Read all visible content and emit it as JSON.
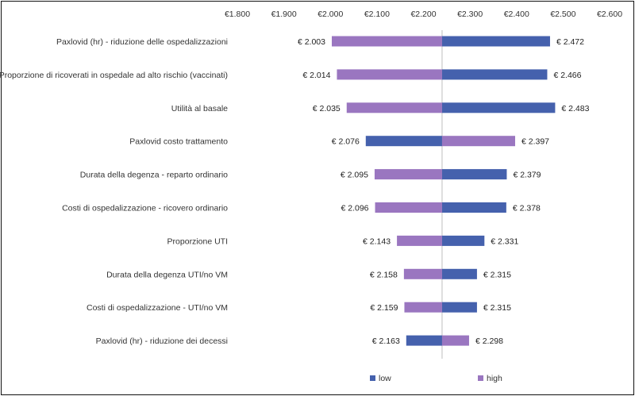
{
  "chart_data": {
    "type": "tornado",
    "baseline": 2240,
    "xlim": [
      1800,
      2600
    ],
    "x_ticks": [
      1800,
      1900,
      2000,
      2100,
      2200,
      2300,
      2400,
      2500,
      2600
    ],
    "x_tick_labels": [
      "€1.800",
      "€1.900",
      "€2.000",
      "€2.100",
      "€2.200",
      "€2.300",
      "€2.400",
      "€2.500",
      "€2.600"
    ],
    "categories": [
      "Paxlovid (hr) - riduzione delle ospedalizzazioni",
      "Proporzione di ricoverati in ospedale ad alto rischio (vaccinati)",
      "Utilità al basale",
      "Paxlovid costo trattamento",
      "Durata della degenza - reparto ordinario",
      "Costi di ospedalizzazione - ricovero ordinario",
      "Proporzione UTI",
      "Durata della degenza UTI/no VM",
      "Costi di ospedalizzazione - UTI/no VM",
      "Paxlovid (hr) - riduzione dei decessi"
    ],
    "series": [
      {
        "name": "low",
        "color": "#4561ad",
        "values": [
          2472,
          2466,
          2483,
          2076,
          2379,
          2378,
          2331,
          2315,
          2315,
          2163
        ]
      },
      {
        "name": "high",
        "color": "#9a76c0",
        "values": [
          2003,
          2014,
          2035,
          2397,
          2095,
          2096,
          2143,
          2158,
          2159,
          2298
        ]
      }
    ],
    "data_labels": [
      {
        "left": "€ 2.003",
        "right": "€ 2.472"
      },
      {
        "left": "€ 2.014",
        "right": "€ 2.466"
      },
      {
        "left": "€ 2.035",
        "right": "€ 2.483"
      },
      {
        "left": "€ 2.076",
        "right": "€ 2.397"
      },
      {
        "left": "€ 2.095",
        "right": "€ 2.379"
      },
      {
        "left": "€ 2.096",
        "right": "€ 2.378"
      },
      {
        "left": "€ 2.143",
        "right": "€ 2.331"
      },
      {
        "left": "€ 2.158",
        "right": "€ 2.315"
      },
      {
        "left": "€ 2.159",
        "right": "€ 2.315"
      },
      {
        "left": "€ 2.163",
        "right": "€ 2.298"
      }
    ],
    "legend": {
      "position": "bottom",
      "entries": [
        "low",
        "high"
      ]
    },
    "title": "",
    "xlabel": "",
    "ylabel": ""
  }
}
